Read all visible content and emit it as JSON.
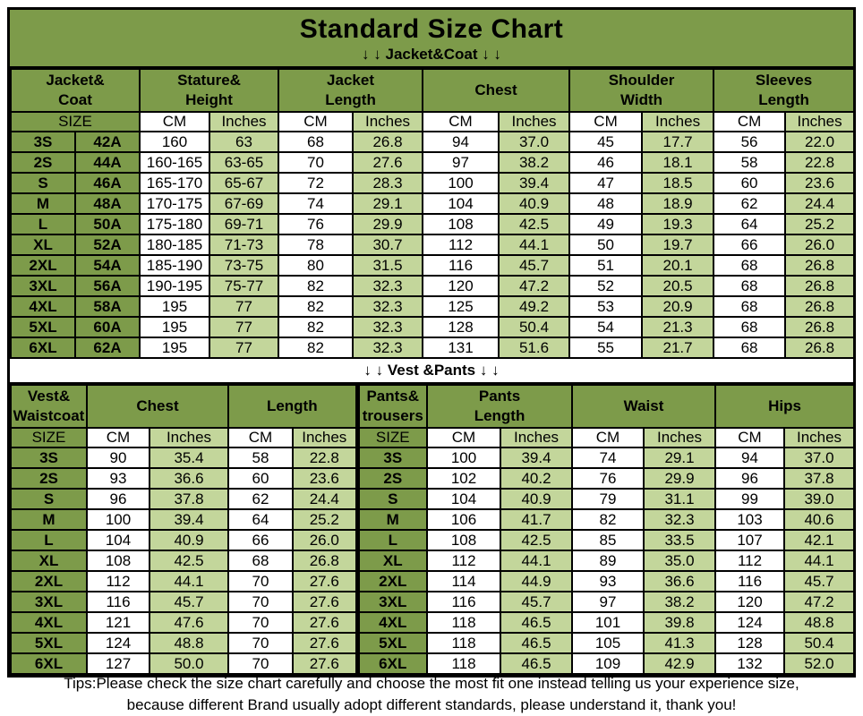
{
  "title": "Standard Size Chart",
  "labels": {
    "size": "SIZE",
    "cm": "CM",
    "inches": "Inches"
  },
  "colors": {
    "green": "#7d9b4a",
    "light_green": "#c3d69b",
    "border": "#000000"
  },
  "jacket": {
    "section_label": "↓ ↓  Jacket&Coat ↓ ↓",
    "columns": [
      "Jacket&\nCoat",
      "Stature&\nHeight",
      "Jacket\nLength",
      "Chest",
      "Shoulder\nWidth",
      "Sleeves\nLength"
    ],
    "rows": [
      [
        "3S",
        "42A",
        "160",
        "63",
        "68",
        "26.8",
        "94",
        "37.0",
        "45",
        "17.7",
        "56",
        "22.0"
      ],
      [
        "2S",
        "44A",
        "160-165",
        "63-65",
        "70",
        "27.6",
        "97",
        "38.2",
        "46",
        "18.1",
        "58",
        "22.8"
      ],
      [
        "S",
        "46A",
        "165-170",
        "65-67",
        "72",
        "28.3",
        "100",
        "39.4",
        "47",
        "18.5",
        "60",
        "23.6"
      ],
      [
        "M",
        "48A",
        "170-175",
        "67-69",
        "74",
        "29.1",
        "104",
        "40.9",
        "48",
        "18.9",
        "62",
        "24.4"
      ],
      [
        "L",
        "50A",
        "175-180",
        "69-71",
        "76",
        "29.9",
        "108",
        "42.5",
        "49",
        "19.3",
        "64",
        "25.2"
      ],
      [
        "XL",
        "52A",
        "180-185",
        "71-73",
        "78",
        "30.7",
        "112",
        "44.1",
        "50",
        "19.7",
        "66",
        "26.0"
      ],
      [
        "2XL",
        "54A",
        "185-190",
        "73-75",
        "80",
        "31.5",
        "116",
        "45.7",
        "51",
        "20.1",
        "68",
        "26.8"
      ],
      [
        "3XL",
        "56A",
        "190-195",
        "75-77",
        "82",
        "32.3",
        "120",
        "47.2",
        "52",
        "20.5",
        "68",
        "26.8"
      ],
      [
        "4XL",
        "58A",
        "195",
        "77",
        "82",
        "32.3",
        "125",
        "49.2",
        "53",
        "20.9",
        "68",
        "26.8"
      ],
      [
        "5XL",
        "60A",
        "195",
        "77",
        "82",
        "32.3",
        "128",
        "50.4",
        "54",
        "21.3",
        "68",
        "26.8"
      ],
      [
        "6XL",
        "62A",
        "195",
        "77",
        "82",
        "32.3",
        "131",
        "51.6",
        "55",
        "21.7",
        "68",
        "26.8"
      ]
    ]
  },
  "vest": {
    "section_label": "↓ ↓  Vest &Pants ↓ ↓",
    "columns": [
      "Vest&\nWaistcoat",
      "Chest",
      "Length",
      "Pants&\ntrousers",
      "Pants\nLength",
      "Waist",
      "Hips"
    ],
    "rows": [
      [
        "3S",
        "90",
        "35.4",
        "58",
        "22.8",
        "3S",
        "100",
        "39.4",
        "74",
        "29.1",
        "94",
        "37.0"
      ],
      [
        "2S",
        "93",
        "36.6",
        "60",
        "23.6",
        "2S",
        "102",
        "40.2",
        "76",
        "29.9",
        "96",
        "37.8"
      ],
      [
        "S",
        "96",
        "37.8",
        "62",
        "24.4",
        "S",
        "104",
        "40.9",
        "79",
        "31.1",
        "99",
        "39.0"
      ],
      [
        "M",
        "100",
        "39.4",
        "64",
        "25.2",
        "M",
        "106",
        "41.7",
        "82",
        "32.3",
        "103",
        "40.6"
      ],
      [
        "L",
        "104",
        "40.9",
        "66",
        "26.0",
        "L",
        "108",
        "42.5",
        "85",
        "33.5",
        "107",
        "42.1"
      ],
      [
        "XL",
        "108",
        "42.5",
        "68",
        "26.8",
        "XL",
        "112",
        "44.1",
        "89",
        "35.0",
        "112",
        "44.1"
      ],
      [
        "2XL",
        "112",
        "44.1",
        "70",
        "27.6",
        "2XL",
        "114",
        "44.9",
        "93",
        "36.6",
        "116",
        "45.7"
      ],
      [
        "3XL",
        "116",
        "45.7",
        "70",
        "27.6",
        "3XL",
        "116",
        "45.7",
        "97",
        "38.2",
        "120",
        "47.2"
      ],
      [
        "4XL",
        "121",
        "47.6",
        "70",
        "27.6",
        "4XL",
        "118",
        "46.5",
        "101",
        "39.8",
        "124",
        "48.8"
      ],
      [
        "5XL",
        "124",
        "48.8",
        "70",
        "27.6",
        "5XL",
        "118",
        "46.5",
        "105",
        "41.3",
        "128",
        "50.4"
      ],
      [
        "6XL",
        "127",
        "50.0",
        "70",
        "27.6",
        "6XL",
        "118",
        "46.5",
        "109",
        "42.9",
        "132",
        "52.0"
      ]
    ]
  },
  "tips": {
    "line1": "Tips:Please check the size chart carefully and choose the most fit one instead telling us your experience size,",
    "line2": "because different Brand usually adopt different standards, please understand it, thank you!"
  }
}
